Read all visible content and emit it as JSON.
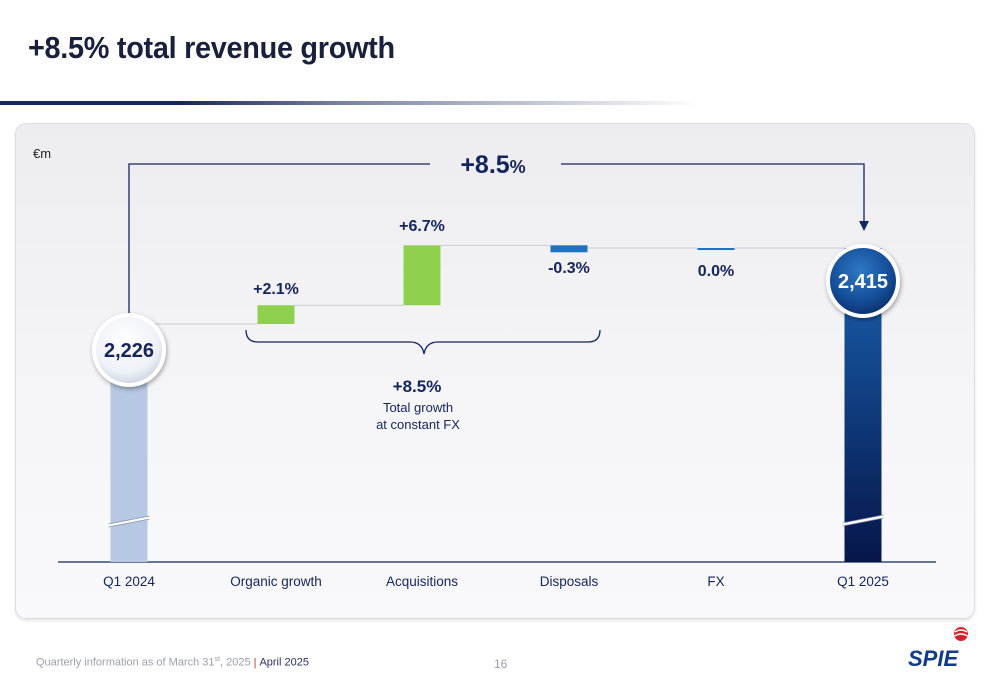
{
  "header": {
    "title": "+8.5% total revenue growth"
  },
  "footer": {
    "note_prefix": "Quarterly information as of March 31",
    "note_sup": "st",
    "note_suffix": ", 2025",
    "date": "April 2025",
    "page_number": "16"
  },
  "logo": {
    "text": "SPIE",
    "icon": "spie-logo-icon"
  },
  "annotations": {
    "overall_value": "+8.5",
    "overall_unit": "%",
    "brace_value": "+8.5%",
    "brace_line1": "Total growth",
    "brace_line2": "at constant FX"
  },
  "colors": {
    "start_bar": "#b6c8e2",
    "end_bar_top": "#1a63b2",
    "end_bar_bottom": "#06164a",
    "positive": "#8fd14f",
    "negative": "#1f72c0",
    "label": "#14245c"
  },
  "chart_data": {
    "type": "bar",
    "subtype": "waterfall",
    "unit_label": "€m",
    "categories": [
      "Q1 2024",
      "Organic growth",
      "Acquisitions",
      "Disposals",
      "FX",
      "Q1 2025"
    ],
    "start_value": 2226,
    "end_value": 2415,
    "value_labels": [
      "2,226",
      "+2.1%",
      "+6.7%",
      "-0.3%",
      "0.0%",
      "2,415"
    ],
    "changes_pct": [
      2.1,
      6.7,
      -0.3,
      0.0
    ],
    "total_growth_pct": 8.5,
    "axis_break": true
  }
}
